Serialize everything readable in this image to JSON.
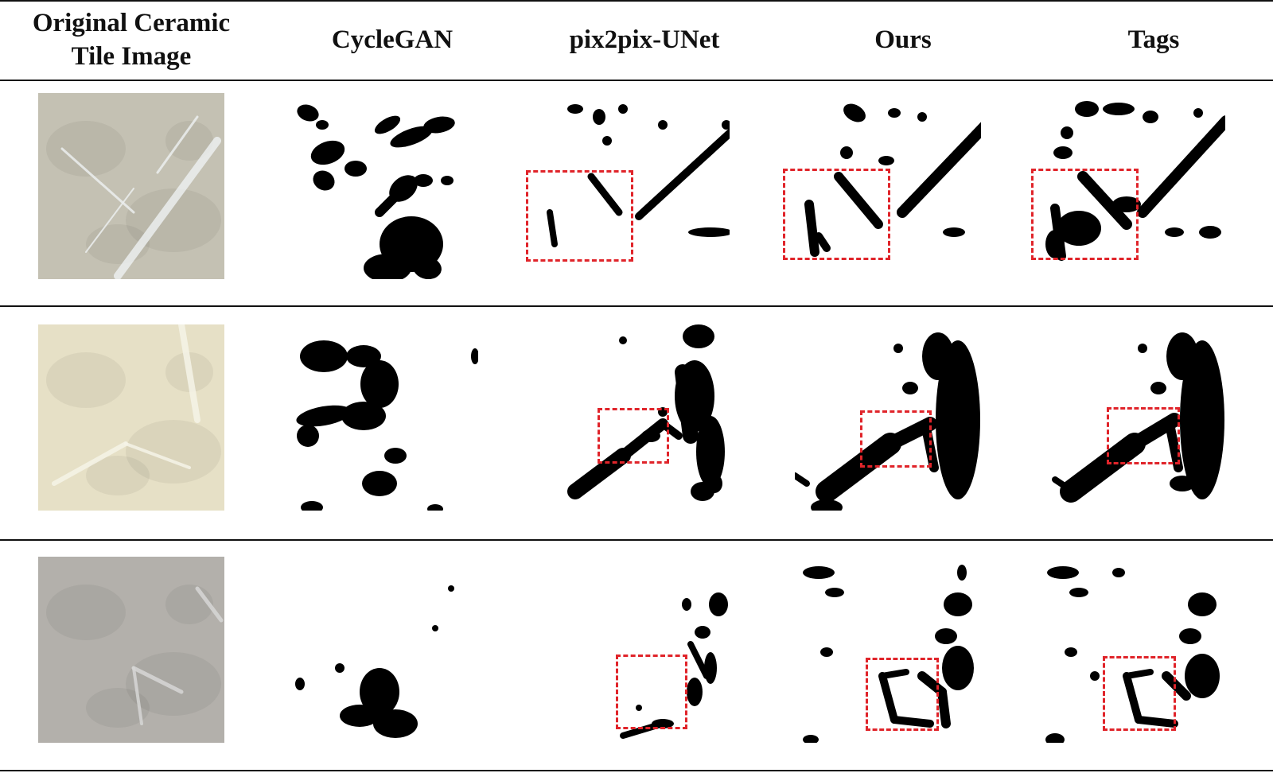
{
  "figure": {
    "columns": [
      {
        "key": "original",
        "header": "Original Ceramic Tile Image"
      },
      {
        "key": "cyclegan",
        "header": "CycleGAN"
      },
      {
        "key": "pix2pix",
        "header": "pix2pix-UNet"
      },
      {
        "key": "ours",
        "header": "Ours"
      },
      {
        "key": "tags",
        "header": "Tags"
      }
    ],
    "rows": [
      {
        "tile_color": "#c4c1b3",
        "vein_color": "#ecefef"
      },
      {
        "tile_color": "#e6e0c6",
        "vein_color": "#f6f4e8"
      },
      {
        "tile_color": "#b3b0ab",
        "vein_color": "#d7d7d6"
      }
    ],
    "highlight_color": "#e0242a"
  }
}
